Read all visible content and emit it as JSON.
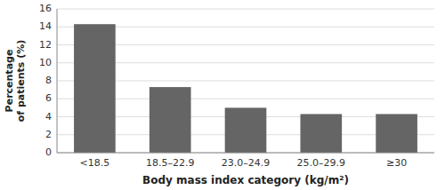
{
  "chart_data": {
    "type": "bar",
    "categories": [
      "<18.5",
      "18.5–22.9",
      "23.0–24.9",
      "25.0–29.9",
      "≥30"
    ],
    "values": [
      14.3,
      7.3,
      5.0,
      4.3,
      4.3
    ],
    "color": "#656565",
    "xlabel": "Body mass index category (kg/m²)",
    "ylabel": "Percentage\nof patients (%)",
    "ylim": [
      0,
      16
    ],
    "yticks": [
      0,
      2,
      4,
      6,
      8,
      10,
      12,
      14,
      16
    ],
    "grid": true
  }
}
